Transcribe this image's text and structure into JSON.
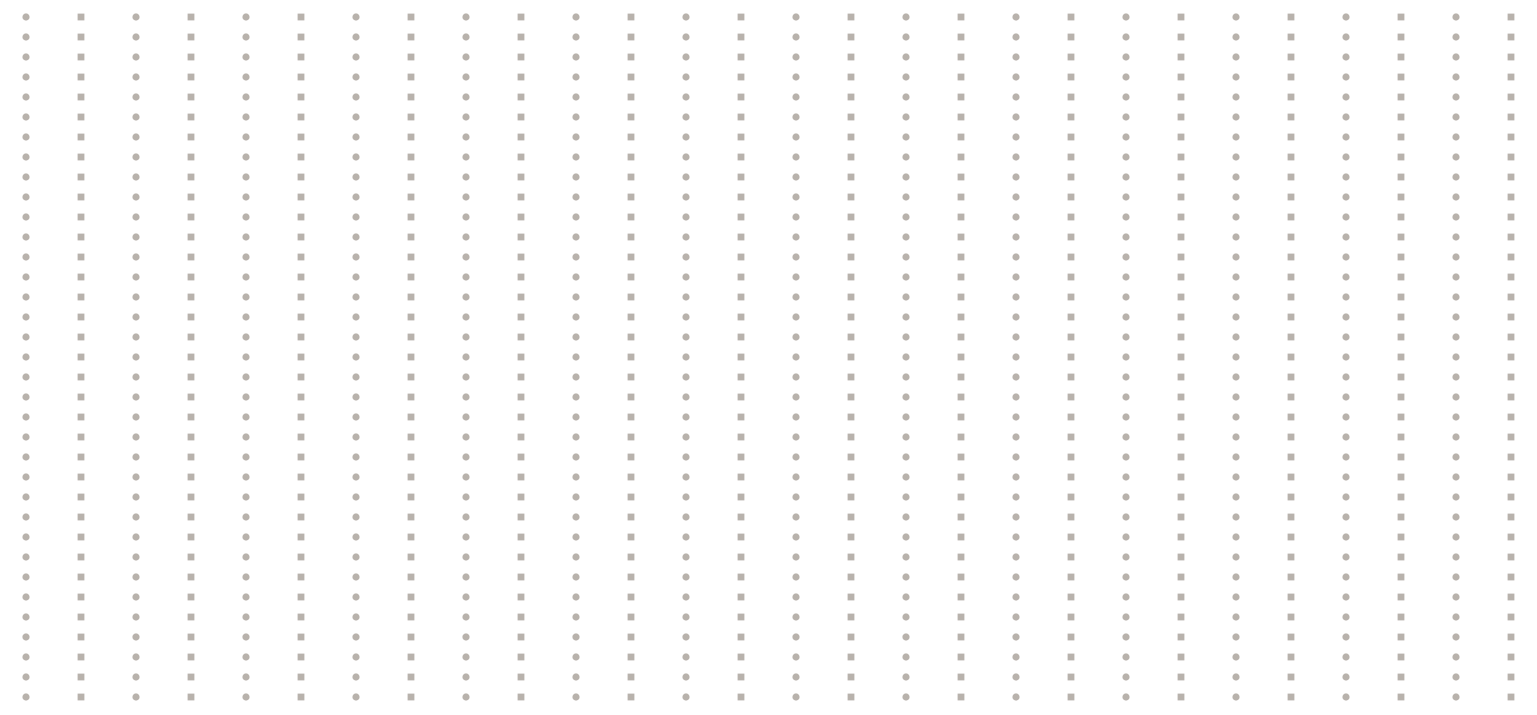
{
  "pattern": {
    "dot_color": "#b8b2ac",
    "background_color": "#ffffff",
    "column_shapes": [
      "circle",
      "square"
    ],
    "columns": 28,
    "rows": 35
  }
}
